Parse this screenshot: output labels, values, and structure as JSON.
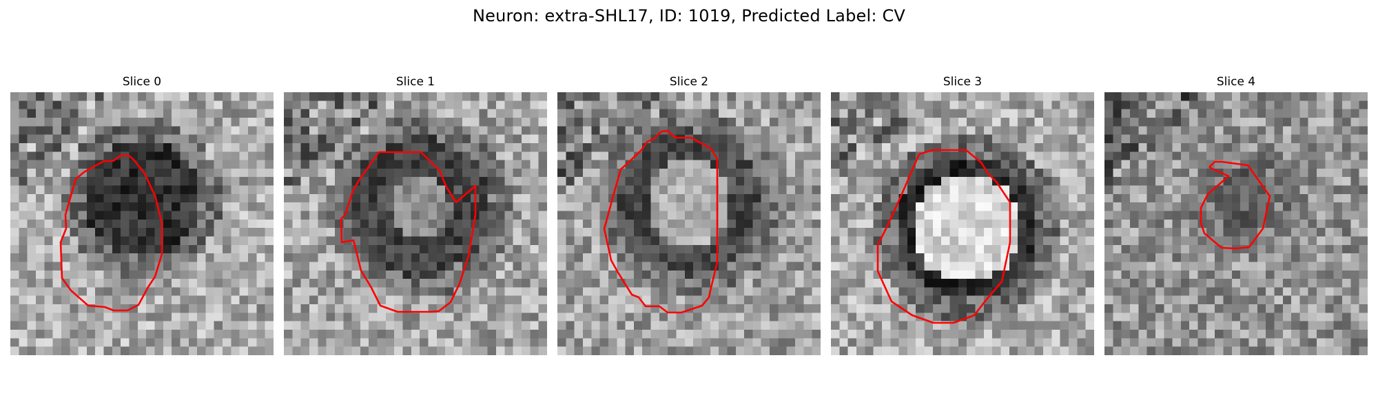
{
  "figure": {
    "title": "Neuron: extra-SHL17, ID: 1019, Predicted Label: CV"
  },
  "panels": [
    {
      "title": "Slice 0"
    },
    {
      "title": "Slice 1"
    },
    {
      "title": "Slice 2"
    },
    {
      "title": "Slice 3"
    },
    {
      "title": "Slice 4"
    }
  ],
  "colors": {
    "contour": "#ff0000",
    "background": "#ffffff",
    "colormap": "gray"
  }
}
